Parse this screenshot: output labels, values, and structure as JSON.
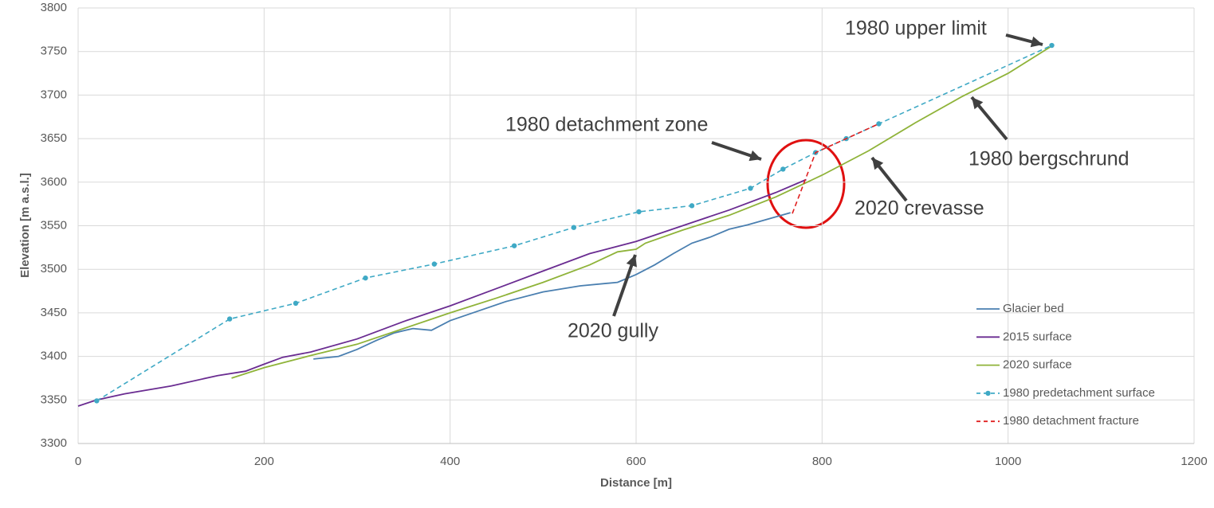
{
  "chart_data": {
    "type": "line",
    "xlabel": "Distance [m]",
    "ylabel": "Elevation [m a.s.l.]",
    "xlim": [
      0,
      1200
    ],
    "xticks": [
      0,
      200,
      400,
      600,
      800,
      1000,
      1200
    ],
    "ylim": [
      3300,
      3800
    ],
    "yticks": [
      3300,
      3350,
      3400,
      3450,
      3500,
      3550,
      3600,
      3650,
      3700,
      3750,
      3800
    ],
    "grid": true,
    "legend": "lower right",
    "series": [
      {
        "name": "Glacier bed",
        "color": "#4a7fb0",
        "style": "solid",
        "x": [
          253,
          280,
          300,
          320,
          340,
          360,
          380,
          400,
          430,
          460,
          500,
          540,
          580,
          600,
          620,
          640,
          660,
          680,
          700,
          720,
          740,
          766
        ],
        "values": [
          3397,
          3400,
          3408,
          3418,
          3427,
          3432,
          3430,
          3441,
          3452,
          3463,
          3474,
          3481,
          3485,
          3494,
          3505,
          3518,
          3530,
          3537,
          3546,
          3551,
          3557,
          3565
        ]
      },
      {
        "name": "2015 surface",
        "color": "#6a2c91",
        "style": "solid",
        "x": [
          0,
          20,
          50,
          100,
          150,
          180,
          200,
          220,
          250,
          300,
          350,
          400,
          450,
          500,
          550,
          600,
          650,
          700,
          750,
          783
        ],
        "values": [
          3343,
          3350,
          3357,
          3366,
          3378,
          3383,
          3391,
          3399,
          3405,
          3420,
          3440,
          3458,
          3478,
          3498,
          3518,
          3532,
          3550,
          3568,
          3588,
          3603
        ]
      },
      {
        "name": "2020 surface",
        "color": "#8fb339",
        "style": "solid",
        "x": [
          165,
          200,
          250,
          300,
          350,
          400,
          450,
          500,
          550,
          580,
          600,
          610,
          650,
          700,
          750,
          800,
          850,
          900,
          950,
          1000,
          1048
        ],
        "values": [
          3375,
          3387,
          3401,
          3414,
          3432,
          3450,
          3467,
          3485,
          3505,
          3520,
          3523,
          3530,
          3545,
          3562,
          3583,
          3608,
          3636,
          3668,
          3698,
          3725,
          3757
        ]
      },
      {
        "name": "1980 predetachment surface",
        "color": "#3fa9c5",
        "style": "dashed",
        "markers": true,
        "x": [
          20,
          163,
          234,
          309,
          383,
          469,
          533,
          603,
          660,
          723,
          758,
          793,
          826,
          861,
          1047
        ],
        "values": [
          3349,
          3443,
          3461,
          3490,
          3506,
          3527,
          3548,
          3566,
          3573,
          3593,
          3615,
          3634,
          3650,
          3667,
          3757
        ]
      },
      {
        "name": "1980 detachment fracture",
        "color": "#e02020",
        "style": "dashed",
        "x": [
          768,
          793,
          826,
          861
        ],
        "values": [
          3564,
          3634,
          3650,
          3667
        ]
      }
    ],
    "annotations": [
      "1980 upper limit",
      "1980 detachment zone",
      "1980 bergschrund",
      "2020 crevasse",
      "2020 gully"
    ]
  }
}
